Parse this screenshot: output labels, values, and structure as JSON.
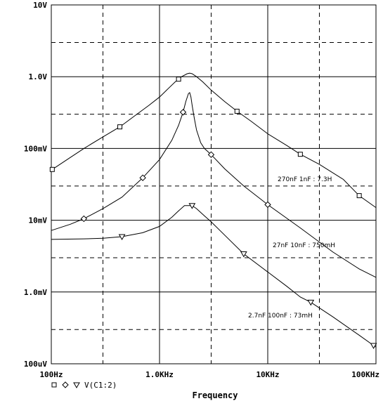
{
  "chart_data": {
    "type": "line",
    "title": "",
    "xlabel": "Frequency",
    "ylabel": "",
    "x_scale": "log",
    "y_scale": "log",
    "xlim": [
      100,
      100000
    ],
    "ylim": [
      0.0001,
      10
    ],
    "x_ticks": [
      100,
      1000,
      10000,
      100000
    ],
    "x_tick_labels": [
      "100Hz",
      "1.0KHz",
      "10KHz",
      "100KHz"
    ],
    "y_ticks": [
      0.0001,
      0.001,
      0.01,
      0.1,
      1,
      10
    ],
    "y_tick_labels": [
      "100uV",
      "1.0mV",
      "10mV",
      "100mV",
      "1.0V",
      "10V"
    ],
    "grid": true,
    "legend": {
      "markers": [
        "square",
        "diamond",
        "triangle-down"
      ],
      "label": "V(C1:2)",
      "placement": "bottom-left"
    },
    "series": [
      {
        "marker": "square",
        "annotation": "270nF 1nF : 7.3H",
        "x": [
          100,
          150,
          200,
          300,
          430,
          600,
          800,
          1000,
          1200,
          1400,
          1600,
          1800,
          1900,
          2000,
          2200,
          2500,
          3000,
          4000,
          5200,
          7000,
          10000,
          15000,
          20000,
          30000,
          50000,
          70000,
          100000
        ],
        "y": [
          0.05,
          0.075,
          0.1,
          0.145,
          0.2,
          0.29,
          0.4,
          0.52,
          0.68,
          0.85,
          1.0,
          1.1,
          1.12,
          1.1,
          1.0,
          0.85,
          0.65,
          0.45,
          0.33,
          0.24,
          0.16,
          0.11,
          0.083,
          0.06,
          0.037,
          0.022,
          0.015
        ]
      },
      {
        "marker": "diamond",
        "annotation": "27nF 10nF : 750mH",
        "x": [
          100,
          150,
          200,
          300,
          450,
          700,
          1000,
          1300,
          1500,
          1650,
          1750,
          1850,
          1900,
          1950,
          2000,
          2100,
          2200,
          2400,
          2600,
          3000,
          4000,
          6000,
          10000,
          20000,
          40000,
          70000,
          100000
        ],
        "y": [
          0.0072,
          0.0088,
          0.0105,
          0.0145,
          0.021,
          0.039,
          0.07,
          0.13,
          0.21,
          0.32,
          0.45,
          0.58,
          0.6,
          0.52,
          0.4,
          0.26,
          0.18,
          0.12,
          0.1,
          0.082,
          0.052,
          0.03,
          0.0165,
          0.0078,
          0.0036,
          0.0021,
          0.0016
        ]
      },
      {
        "marker": "triangle-down",
        "annotation": "2.7nF 100nF : 73mH",
        "x": [
          100,
          200,
          300,
          450,
          700,
          1000,
          1300,
          1500,
          1700,
          1800,
          1900,
          2000,
          2200,
          2600,
          3000,
          4000,
          6000,
          10000,
          15000,
          20000,
          25000,
          40000,
          70000,
          100000
        ],
        "y": [
          0.0054,
          0.0055,
          0.0056,
          0.0059,
          0.0067,
          0.0082,
          0.011,
          0.0135,
          0.016,
          0.016,
          0.016,
          0.016,
          0.0145,
          0.0115,
          0.0095,
          0.0062,
          0.0034,
          0.0019,
          0.0012,
          0.00085,
          0.00072,
          0.00045,
          0.00025,
          0.00017
        ]
      }
    ]
  }
}
